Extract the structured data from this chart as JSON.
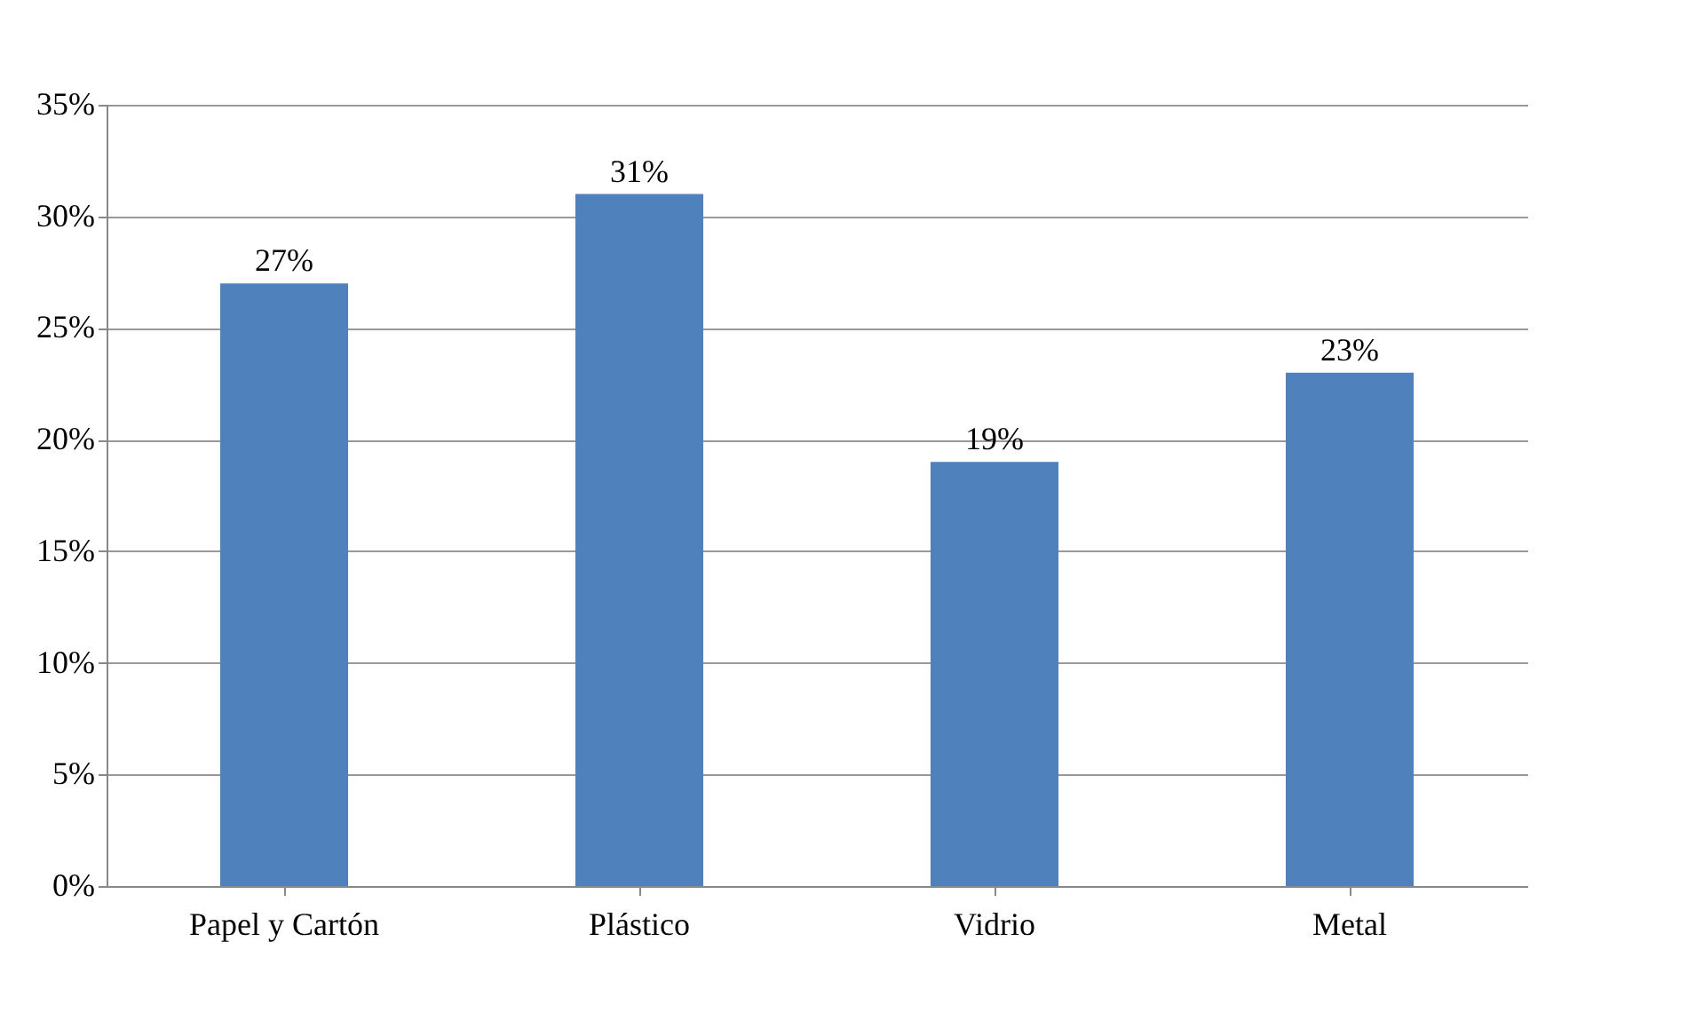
{
  "chart_data": {
    "type": "bar",
    "categories": [
      "Papel y Cartón",
      "Plástico",
      "Vidrio",
      "Metal"
    ],
    "values": [
      27,
      31,
      19,
      23
    ],
    "value_labels": [
      "27%",
      "31%",
      "19%",
      "23%"
    ],
    "color": "#4f81bd",
    "ylim": [
      0,
      35
    ],
    "yticks": [
      {
        "value": 0,
        "label": "0%"
      },
      {
        "value": 5,
        "label": "5%"
      },
      {
        "value": 10,
        "label": "10%"
      },
      {
        "value": 15,
        "label": "15%"
      },
      {
        "value": 20,
        "label": "20%"
      },
      {
        "value": 25,
        "label": "25%"
      },
      {
        "value": 30,
        "label": "30%"
      },
      {
        "value": 35,
        "label": "35%"
      }
    ],
    "grid": "y"
  }
}
